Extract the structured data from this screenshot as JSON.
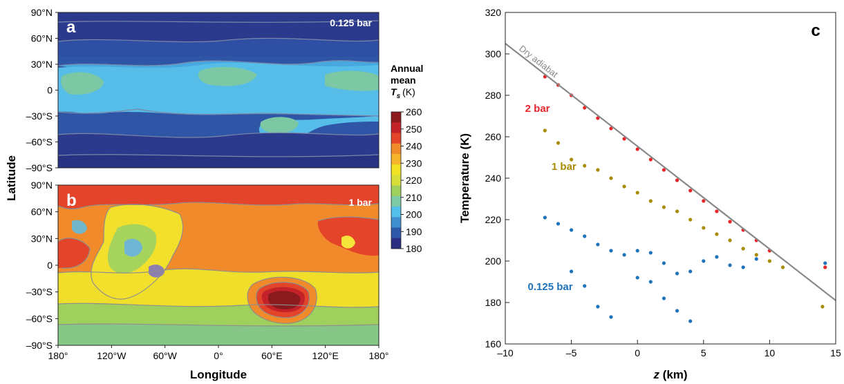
{
  "chart_data": [
    {
      "type": "heatmap",
      "panel_label": "a",
      "pressure_label": "0.125 bar",
      "xlabel": "Longitude",
      "ylabel": "Latitude",
      "x_ticks": [
        "180°",
        "120°W",
        "60°W",
        "0°",
        "60°E",
        "120°E",
        "180°"
      ],
      "y_ticks": [
        "90°N",
        "60°N",
        "30°N",
        "0",
        "–30°S",
        "–60°S",
        "–90°S"
      ],
      "colorbar": {
        "title_lines": [
          "Annual",
          "mean"
        ],
        "title_var": "T",
        "title_sub": "s",
        "title_unit": "(K)",
        "ticks": [
          "260",
          "250",
          "240",
          "230",
          "220",
          "210",
          "200",
          "190",
          "180"
        ],
        "range": [
          180,
          260
        ],
        "colors": [
          "#2b2d83",
          "#2e58a8",
          "#3f8fd0",
          "#52c0e8",
          "#7ec9a6",
          "#9fcf5c",
          "#d8df3a",
          "#f1e323",
          "#f5b52a",
          "#f08a2a",
          "#e4442a",
          "#c32228",
          "#8a1a1e"
        ]
      },
      "approx_field": {
        "background_K": 200,
        "bands": [
          {
            "lat_range": [
              60,
              90
            ],
            "K": 188
          },
          {
            "lat_range": [
              30,
              60
            ],
            "K": 195
          },
          {
            "lat_range": [
              -20,
              30
            ],
            "K": 210
          },
          {
            "lat_range": [
              -60,
              -20
            ],
            "K": 195
          },
          {
            "lat_range": [
              -90,
              -60
            ],
            "K": 188
          }
        ],
        "warm_spots_K": 220
      }
    },
    {
      "type": "heatmap",
      "panel_label": "b",
      "pressure_label": "1 bar",
      "xlabel": "Longitude",
      "ylabel": "Latitude",
      "x_ticks": [
        "180°",
        "120°W",
        "60°W",
        "0°",
        "60°E",
        "120°E",
        "180°"
      ],
      "y_ticks": [
        "90°N",
        "60°N",
        "30°N",
        "0",
        "–30°S",
        "–60°S",
        "–90°S"
      ],
      "approx_field": {
        "background_K": 240,
        "bands": [
          {
            "lat_range": [
              30,
              90
            ],
            "K": 242
          },
          {
            "lat_range": [
              -20,
              30
            ],
            "K": 235
          },
          {
            "lat_range": [
              -60,
              -20
            ],
            "K": 228
          },
          {
            "lat_range": [
              -90,
              -60
            ],
            "K": 220
          }
        ],
        "cold_spot_hellas_K": 260
      }
    },
    {
      "type": "scatter",
      "panel_label": "c",
      "xlabel": "z (km)",
      "ylabel": "Temperature (K)",
      "xlim": [
        -10,
        15
      ],
      "ylim": [
        160,
        320
      ],
      "x_ticks": [
        "–10",
        "–5",
        "0",
        "5",
        "10",
        "15"
      ],
      "y_ticks": [
        "160",
        "180",
        "200",
        "220",
        "240",
        "260",
        "280",
        "300",
        "320"
      ],
      "adiabat": {
        "label": "Dry adiabat",
        "x": [
          -10,
          15
        ],
        "y": [
          305,
          181
        ],
        "color": "#888888"
      },
      "series": [
        {
          "name": "2 bar",
          "color": "#e8262a",
          "label_pos": [
            -8.5,
            272
          ],
          "points": [
            [
              -7,
              289
            ],
            [
              -6,
              285
            ],
            [
              -5,
              280
            ],
            [
              -4,
              274
            ],
            [
              -3,
              269
            ],
            [
              -2,
              264
            ],
            [
              -1,
              259
            ],
            [
              0,
              254
            ],
            [
              1,
              249
            ],
            [
              2,
              244
            ],
            [
              3,
              239
            ],
            [
              4,
              234
            ],
            [
              5,
              229
            ],
            [
              6,
              224
            ],
            [
              7,
              219
            ],
            [
              8,
              215
            ],
            [
              9,
              210
            ],
            [
              10,
              205
            ],
            [
              14.2,
              197
            ]
          ]
        },
        {
          "name": "1 bar",
          "color": "#a88b00",
          "label_pos": [
            -6.5,
            244
          ],
          "points": [
            [
              -7,
              263
            ],
            [
              -6,
              257
            ],
            [
              -5,
              249
            ],
            [
              -4,
              246
            ],
            [
              -3,
              244
            ],
            [
              -2,
              240
            ],
            [
              -1,
              236
            ],
            [
              0,
              233
            ],
            [
              1,
              229
            ],
            [
              2,
              226
            ],
            [
              3,
              224
            ],
            [
              4,
              220
            ],
            [
              5,
              216
            ],
            [
              6,
              213
            ],
            [
              7,
              210
            ],
            [
              8,
              206
            ],
            [
              9,
              203
            ],
            [
              10,
              200
            ],
            [
              11,
              197
            ],
            [
              14,
              178
            ]
          ]
        },
        {
          "name": "0.125 bar",
          "color": "#1f73bb",
          "label_pos": [
            -8.3,
            186
          ],
          "points": [
            [
              -7,
              221
            ],
            [
              -6,
              218
            ],
            [
              -5,
              215
            ],
            [
              -4,
              212
            ],
            [
              -3,
              208
            ],
            [
              -2,
              205
            ],
            [
              -1,
              203
            ],
            [
              0,
              205
            ],
            [
              1,
              204
            ],
            [
              2,
              199
            ],
            [
              3,
              194
            ],
            [
              4,
              195
            ],
            [
              5,
              200
            ],
            [
              6,
              202
            ],
            [
              7,
              198
            ],
            [
              8,
              197
            ],
            [
              9,
              201
            ],
            [
              14.2,
              199
            ],
            [
              -5,
              195
            ],
            [
              -4,
              188
            ],
            [
              -3,
              178
            ],
            [
              -2,
              173
            ],
            [
              0,
              192
            ],
            [
              1,
              190
            ],
            [
              2,
              182
            ],
            [
              3,
              176
            ],
            [
              4,
              171
            ]
          ]
        }
      ]
    }
  ]
}
